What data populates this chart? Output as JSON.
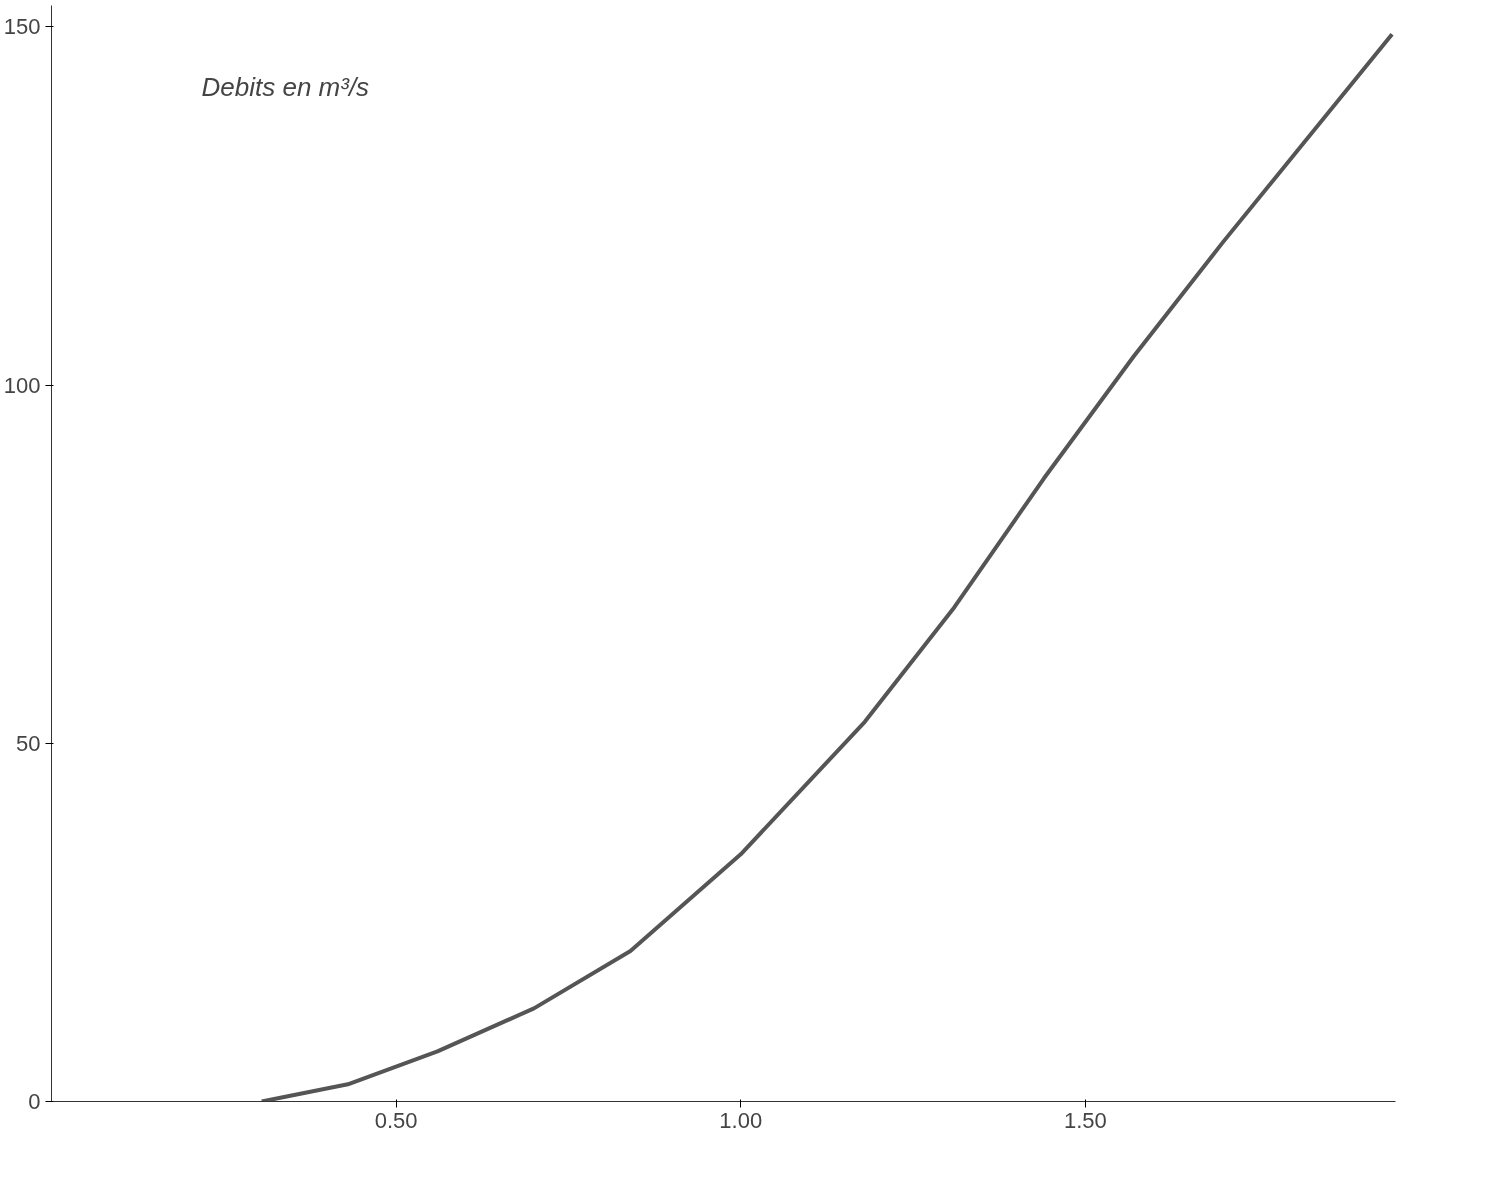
{
  "chart_data": {
    "type": "line",
    "ylabel": "Debits en m³/s",
    "x": [
      0.305,
      0.43,
      0.56,
      0.7,
      0.84,
      1.0,
      1.18,
      1.31,
      1.44,
      1.57,
      1.7,
      1.945
    ],
    "series": [
      {
        "color": "#555555",
        "values": [
          0,
          2.4,
          7,
          13,
          21,
          34.5,
          53,
          69,
          87,
          104,
          120,
          149
        ]
      }
    ],
    "xlim": [
      0,
      1.95
    ],
    "ylim": [
      0,
      153
    ],
    "xticks": [
      {
        "value": 0.5,
        "label": "0.50"
      },
      {
        "value": 1.0,
        "label": "1.00"
      },
      {
        "value": 1.5,
        "label": "1.50"
      }
    ],
    "yticks": [
      0,
      50,
      100,
      150
    ],
    "grid": false,
    "marker": "none",
    "line_style": "solid"
  }
}
